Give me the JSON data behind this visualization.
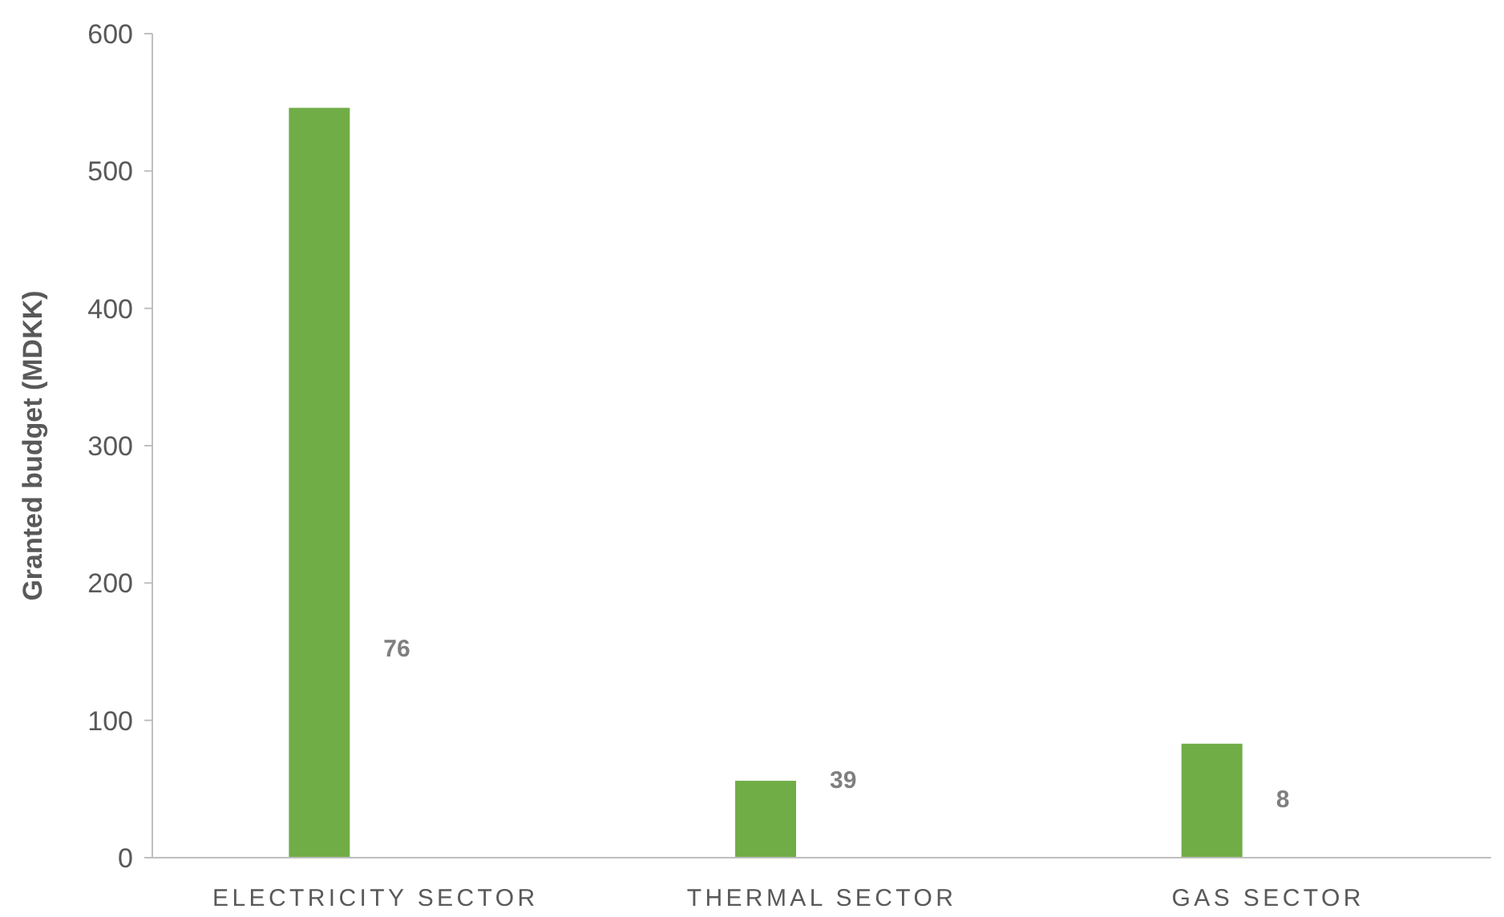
{
  "chart_data": {
    "type": "bar",
    "ylabel": "Granted budget (MDKK)",
    "categories": [
      "ELECTRICITY SECTOR",
      "THERMAL SECTOR",
      "GAS SECTOR"
    ],
    "values": [
      546,
      56,
      83
    ],
    "color": "#70ad47",
    "ylim": [
      0,
      600
    ],
    "yticks": [
      0,
      100,
      200,
      300,
      400,
      500,
      600
    ],
    "annotations": [
      "76",
      "39",
      "8"
    ]
  }
}
